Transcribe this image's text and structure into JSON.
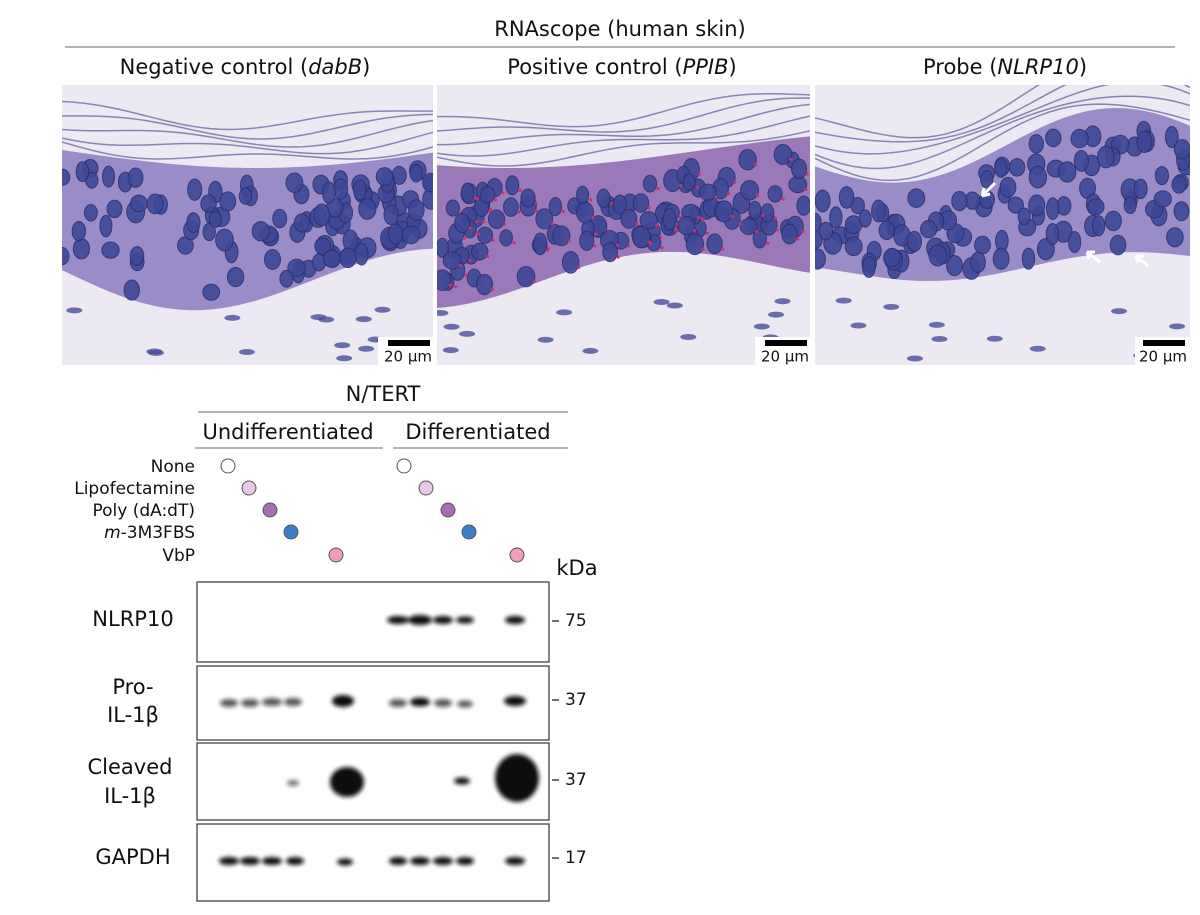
{
  "rnascope": {
    "title": "RNAscope (human skin)",
    "panels": [
      {
        "title_parts": [
          "Negative control (",
          "dabB",
          ")"
        ],
        "scale_bar": "20 µm"
      },
      {
        "title_parts": [
          "Positive control (",
          "PPIB",
          ")"
        ],
        "scale_bar": "20 µm"
      },
      {
        "title_parts": [
          "Probe (",
          "NLRP10",
          ")"
        ],
        "scale_bar": "20 µm"
      }
    ]
  },
  "western_blot": {
    "title": "N/TERT",
    "groups": [
      "Undifferentiated",
      "Differentiated"
    ],
    "treatments": [
      {
        "label_parts": [
          "None"
        ],
        "color": "#ffffff"
      },
      {
        "label_parts": [
          "Lipofectamine"
        ],
        "color": "#e6c9e4"
      },
      {
        "label_parts": [
          "Poly (dA:dT)"
        ],
        "color": "#a66fb3"
      },
      {
        "label_parts": [
          "m",
          "-3M3FBS"
        ],
        "color": "#3d7fc6"
      },
      {
        "label_parts": [
          "VbP"
        ],
        "color": "#f29bbb"
      }
    ],
    "unit": "kDa",
    "blots": [
      {
        "label_lines": [
          "NLRP10"
        ],
        "marker": 75
      },
      {
        "label_lines": [
          "Pro-",
          "IL-1β"
        ],
        "marker": 37
      },
      {
        "label_lines": [
          "Cleaved",
          "IL-1β"
        ],
        "marker": 37
      },
      {
        "label_lines": [
          "GAPDH"
        ],
        "marker": 17
      }
    ]
  }
}
